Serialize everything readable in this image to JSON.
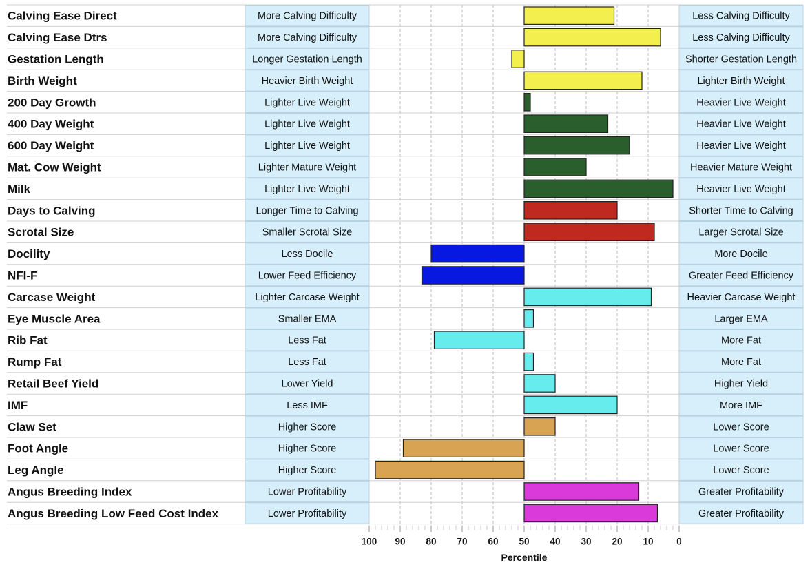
{
  "chart_data": {
    "type": "bar",
    "xlabel": "Percentile",
    "xlim": [
      100,
      0
    ],
    "x_ticks": [
      "100",
      "90",
      "80",
      "70",
      "60",
      "50",
      "40",
      "30",
      "20",
      "10",
      "0"
    ],
    "baseline": 50,
    "grid": true,
    "rows": [
      {
        "trait": "Calving Ease Direct",
        "left": "More Calving Difficulty",
        "right": "Less Calving Difficulty",
        "value": 21,
        "color": "#f3ef4f"
      },
      {
        "trait": "Calving Ease Dtrs",
        "left": "More Calving Difficulty",
        "right": "Less Calving Difficulty",
        "value": 6,
        "color": "#f3ef4f"
      },
      {
        "trait": "Gestation Length",
        "left": "Longer Gestation Length",
        "right": "Shorter Gestation Length",
        "value": 54,
        "color": "#f3ef4f"
      },
      {
        "trait": "Birth Weight",
        "left": "Heavier Birth Weight",
        "right": "Lighter Birth Weight",
        "value": 12,
        "color": "#f3ef4f"
      },
      {
        "trait": "200 Day Growth",
        "left": "Lighter Live Weight",
        "right": "Heavier Live Weight",
        "value": 48,
        "color": "#2a5e2c"
      },
      {
        "trait": "400 Day Weight",
        "left": "Lighter Live Weight",
        "right": "Heavier Live Weight",
        "value": 23,
        "color": "#2a5e2c"
      },
      {
        "trait": "600 Day Weight",
        "left": "Lighter Live Weight",
        "right": "Heavier Live Weight",
        "value": 16,
        "color": "#2a5e2c"
      },
      {
        "trait": "Mat. Cow Weight",
        "left": "Lighter Mature Weight",
        "right": "Heavier Mature Weight",
        "value": 30,
        "color": "#2a5e2c"
      },
      {
        "trait": "Milk",
        "left": "Lighter Live Weight",
        "right": "Heavier Live Weight",
        "value": 2,
        "color": "#2a5e2c"
      },
      {
        "trait": "Days to Calving",
        "left": "Longer Time to Calving",
        "right": "Shorter Time to Calving",
        "value": 20,
        "color": "#c0291f"
      },
      {
        "trait": "Scrotal Size",
        "left": "Smaller Scrotal Size",
        "right": "Larger Scrotal Size",
        "value": 8,
        "color": "#c0291f"
      },
      {
        "trait": "Docility",
        "left": "Less Docile",
        "right": "More Docile",
        "value": 80,
        "color": "#0719e0"
      },
      {
        "trait": "NFI-F",
        "left": "Lower Feed Efficiency",
        "right": "Greater Feed Efficiency",
        "value": 83,
        "color": "#0719e0"
      },
      {
        "trait": "Carcase Weight",
        "left": "Lighter Carcase Weight",
        "right": "Heavier Carcase Weight",
        "value": 9,
        "color": "#66ecec"
      },
      {
        "trait": "Eye Muscle Area",
        "left": "Smaller EMA",
        "right": "Larger EMA",
        "value": 47,
        "color": "#66ecec"
      },
      {
        "trait": "Rib Fat",
        "left": "Less Fat",
        "right": "More Fat",
        "value": 79,
        "color": "#66ecec"
      },
      {
        "trait": "Rump Fat",
        "left": "Less Fat",
        "right": "More Fat",
        "value": 47,
        "color": "#66ecec"
      },
      {
        "trait": "Retail Beef Yield",
        "left": "Lower Yield",
        "right": "Higher Yield",
        "value": 40,
        "color": "#66ecec"
      },
      {
        "trait": "IMF",
        "left": "Less IMF",
        "right": "More IMF",
        "value": 20,
        "color": "#66ecec"
      },
      {
        "trait": "Claw Set",
        "left": "Higher Score",
        "right": "Lower Score",
        "value": 40,
        "color": "#d8a352"
      },
      {
        "trait": "Foot Angle",
        "left": "Higher Score",
        "right": "Lower Score",
        "value": 89,
        "color": "#d8a352"
      },
      {
        "trait": "Leg Angle",
        "left": "Higher Score",
        "right": "Lower Score",
        "value": 98,
        "color": "#d8a352"
      },
      {
        "trait": "Angus Breeding Index",
        "left": "Lower Profitability",
        "right": "Greater Profitability",
        "value": 13,
        "color": "#d93ad9"
      },
      {
        "trait": "Angus Breeding Low Feed Cost Index",
        "left": "Lower Profitability",
        "right": "Greater Profitability",
        "value": 7,
        "color": "#d93ad9"
      }
    ]
  },
  "colors": {
    "label_box_fill": "#d6effb",
    "label_box_stroke": "#b8d3e0",
    "grid": "#bdbdbd",
    "row_divider": "#d0d0d0",
    "bar_stroke": "#222222"
  }
}
